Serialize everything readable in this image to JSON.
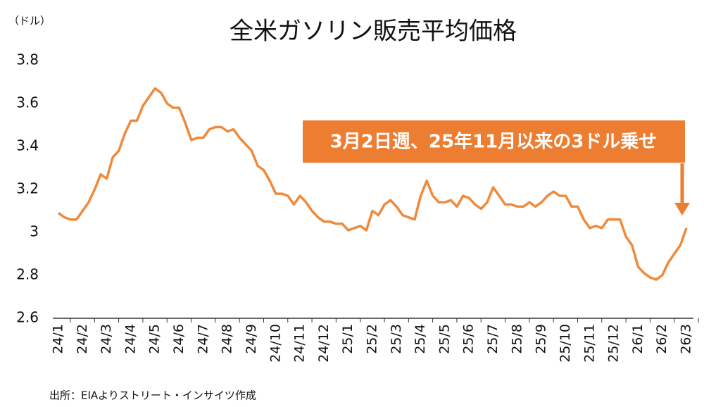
{
  "chart_data": {
    "type": "line",
    "title": "全米ガソリン販売平均価格",
    "unit_label": "（ドル）",
    "source": "出所：EIAよりストリート・インサイツ作成",
    "annotation": "3月2日週、25年11月以来の3ドル乗せ",
    "annotation_color": "#ed7d31",
    "color": "#ef8a3c",
    "categories": [
      "24/1",
      null,
      null,
      null,
      "24/2",
      null,
      null,
      null,
      "24/3",
      null,
      null,
      null,
      "24/4",
      null,
      null,
      null,
      "24/5",
      null,
      null,
      null,
      "24/6",
      null,
      null,
      null,
      "24/7",
      null,
      null,
      null,
      "24/8",
      null,
      null,
      null,
      "24/9",
      null,
      null,
      null,
      "24/10",
      null,
      null,
      null,
      "24/11",
      null,
      null,
      null,
      "24/12",
      null,
      null,
      null,
      "25/1",
      null,
      null,
      null,
      "25/2",
      null,
      null,
      null,
      "25/3",
      null,
      null,
      null,
      "25/4",
      null,
      null,
      null,
      "25/5",
      null,
      null,
      null,
      "25/6",
      null,
      null,
      null,
      "25/7",
      null,
      null,
      null,
      "25/8",
      null,
      null,
      null,
      "25/9",
      null,
      null,
      null,
      "25/10",
      null,
      null,
      null,
      "25/11",
      null,
      null,
      null,
      "25/12",
      null,
      null,
      null,
      "26/1",
      null,
      null,
      null,
      "26/2",
      null,
      null,
      null,
      "26/3"
    ],
    "values": [
      3.09,
      3.07,
      3.06,
      3.06,
      3.1,
      3.14,
      3.2,
      3.27,
      3.25,
      3.35,
      3.38,
      3.46,
      3.52,
      3.52,
      3.59,
      3.63,
      3.67,
      3.65,
      3.6,
      3.58,
      3.58,
      3.51,
      3.43,
      3.44,
      3.44,
      3.48,
      3.49,
      3.49,
      3.47,
      3.48,
      3.44,
      3.41,
      3.38,
      3.31,
      3.29,
      3.24,
      3.18,
      3.18,
      3.17,
      3.13,
      3.17,
      3.14,
      3.1,
      3.07,
      3.05,
      3.05,
      3.04,
      3.04,
      3.01,
      3.02,
      3.03,
      3.01,
      3.1,
      3.08,
      3.13,
      3.15,
      3.12,
      3.08,
      3.07,
      3.06,
      3.17,
      3.24,
      3.17,
      3.14,
      3.14,
      3.15,
      3.12,
      3.17,
      3.16,
      3.13,
      3.11,
      3.14,
      3.21,
      3.17,
      3.13,
      3.13,
      3.12,
      3.12,
      3.14,
      3.12,
      3.14,
      3.17,
      3.19,
      3.17,
      3.17,
      3.12,
      3.12,
      3.06,
      3.02,
      3.03,
      3.02,
      3.06,
      3.06,
      3.06,
      2.98,
      2.94,
      2.84,
      2.81,
      2.79,
      2.78,
      2.8,
      2.86,
      2.9,
      2.94,
      3.02
    ],
    "ylim": [
      2.6,
      3.8
    ],
    "yticks": [
      2.6,
      2.8,
      3,
      3.2,
      3.4,
      3.6,
      3.8
    ]
  }
}
